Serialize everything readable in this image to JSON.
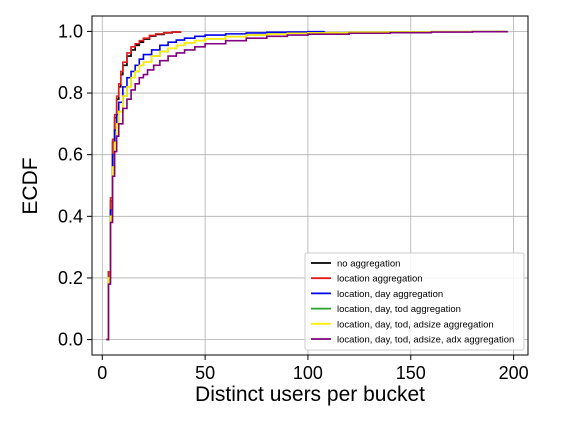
{
  "chart_data": {
    "type": "line",
    "title": "",
    "xlabel": "Distinct users per bucket",
    "ylabel": "ECDF",
    "xlim": [
      -5,
      207
    ],
    "ylim": [
      -0.05,
      1.05
    ],
    "xticks": [
      0,
      50,
      100,
      150,
      200
    ],
    "yticks": [
      0.0,
      0.2,
      0.4,
      0.6,
      0.8,
      1.0
    ],
    "xtick_labels": [
      "0",
      "50",
      "100",
      "150",
      "200"
    ],
    "ytick_labels": [
      "0.0",
      "0.2",
      "0.4",
      "0.6",
      "0.8",
      "1.0"
    ],
    "grid": true,
    "legend_position": "lower-right",
    "series": [
      {
        "name": "no aggregation",
        "color": "#000000",
        "x": [
          2,
          3,
          4,
          5,
          6,
          7,
          8,
          9,
          10,
          12,
          14,
          16,
          18,
          20,
          23,
          26,
          30,
          34,
          38
        ],
        "y": [
          0.0,
          0.22,
          0.45,
          0.64,
          0.72,
          0.78,
          0.82,
          0.86,
          0.89,
          0.92,
          0.94,
          0.955,
          0.965,
          0.975,
          0.985,
          0.99,
          0.995,
          0.998,
          1.0
        ]
      },
      {
        "name": "location aggregation",
        "color": "#e41a1c",
        "x": [
          2,
          3,
          4,
          5,
          6,
          7,
          8,
          9,
          10,
          12,
          14,
          16,
          18,
          20,
          23,
          26,
          30,
          34,
          38
        ],
        "y": [
          0.0,
          0.22,
          0.46,
          0.65,
          0.73,
          0.79,
          0.83,
          0.87,
          0.9,
          0.93,
          0.95,
          0.96,
          0.97,
          0.978,
          0.987,
          0.992,
          0.996,
          0.998,
          1.0
        ]
      },
      {
        "name": "location, day aggregation",
        "color": "#0000ee",
        "x": [
          2,
          3,
          4,
          5,
          6,
          7,
          8,
          10,
          12,
          14,
          16,
          18,
          20,
          24,
          28,
          32,
          36,
          40,
          45,
          50,
          60,
          70,
          80,
          90,
          100,
          108
        ],
        "y": [
          0.0,
          0.2,
          0.42,
          0.6,
          0.68,
          0.73,
          0.77,
          0.82,
          0.85,
          0.87,
          0.89,
          0.91,
          0.925,
          0.94,
          0.955,
          0.965,
          0.972,
          0.978,
          0.984,
          0.988,
          0.992,
          0.995,
          0.997,
          0.998,
          0.999,
          1.0
        ]
      },
      {
        "name": "location, day, tod aggregation",
        "color": "#2ca02c",
        "x": [
          2,
          3,
          4,
          5,
          6,
          7,
          8,
          10,
          12,
          14,
          16,
          18,
          20,
          24,
          28,
          32,
          36,
          40,
          45,
          50,
          60,
          70,
          80,
          90,
          100,
          120,
          140,
          160,
          180,
          197
        ],
        "y": [
          0.0,
          0.2,
          0.4,
          0.56,
          0.64,
          0.7,
          0.74,
          0.79,
          0.82,
          0.85,
          0.87,
          0.89,
          0.9,
          0.92,
          0.935,
          0.945,
          0.955,
          0.963,
          0.97,
          0.976,
          0.983,
          0.988,
          0.991,
          0.994,
          0.995,
          0.997,
          0.998,
          0.999,
          0.9995,
          1.0
        ]
      },
      {
        "name": "location, day, tod, adsize aggregation",
        "color": "#ffee00",
        "x": [
          2,
          3,
          4,
          5,
          6,
          7,
          8,
          10,
          12,
          14,
          16,
          18,
          20,
          24,
          28,
          32,
          36,
          40,
          45,
          50,
          60,
          70,
          80,
          90,
          100,
          120,
          140,
          160,
          180,
          197
        ],
        "y": [
          0.0,
          0.2,
          0.4,
          0.56,
          0.64,
          0.7,
          0.74,
          0.79,
          0.82,
          0.85,
          0.87,
          0.89,
          0.9,
          0.92,
          0.935,
          0.945,
          0.955,
          0.963,
          0.97,
          0.976,
          0.983,
          0.988,
          0.991,
          0.994,
          0.995,
          0.997,
          0.998,
          0.999,
          0.9995,
          1.0
        ]
      },
      {
        "name": "location, day, tod, adsize, adx aggregation",
        "color": "#800080",
        "x": [
          2,
          3,
          4,
          5,
          6,
          7,
          8,
          10,
          12,
          14,
          16,
          18,
          20,
          22,
          25,
          28,
          32,
          36,
          40,
          45,
          50,
          60,
          70,
          80,
          90,
          100,
          120,
          140,
          160,
          180,
          197
        ],
        "y": [
          0.0,
          0.18,
          0.38,
          0.53,
          0.61,
          0.66,
          0.7,
          0.75,
          0.78,
          0.81,
          0.83,
          0.85,
          0.86,
          0.875,
          0.89,
          0.905,
          0.92,
          0.93,
          0.94,
          0.95,
          0.96,
          0.97,
          0.978,
          0.984,
          0.988,
          0.991,
          0.994,
          0.996,
          0.998,
          0.999,
          1.0
        ]
      }
    ]
  }
}
